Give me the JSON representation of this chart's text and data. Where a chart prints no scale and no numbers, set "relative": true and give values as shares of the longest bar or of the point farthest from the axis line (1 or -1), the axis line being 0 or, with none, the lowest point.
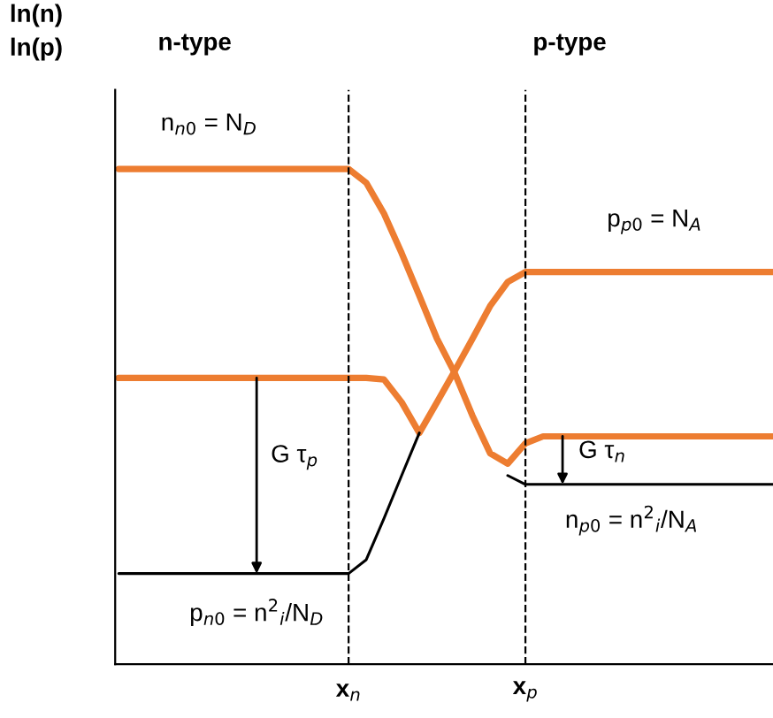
{
  "chart_data": {
    "type": "line",
    "relative": true,
    "ylabel": "ln(n)\nln(p)",
    "categories": [
      null,
      null,
      null,
      null,
      null,
      null,
      null,
      null,
      null,
      null,
      null,
      null,
      null,
      "x$_{n}$",
      null,
      null,
      null,
      null,
      null,
      null,
      null,
      null,
      null,
      "x$_{p}$",
      null,
      null,
      null,
      null,
      null,
      null,
      null,
      null,
      null,
      null,
      null,
      null,
      null,
      null
    ],
    "grid": false,
    "legend": false,
    "line_style": "solid",
    "marker": "none",
    "series": [
      {
        "color": "#ed7d31",
        "values": [
          1.0,
          1.0,
          1.0,
          1.0,
          1.0,
          1.0,
          1.0,
          1.0,
          1.0,
          1.0,
          1.0,
          1.0,
          1.0,
          1.0,
          0.972,
          0.91,
          0.83,
          0.744,
          0.657,
          0.588,
          0.502,
          0.426,
          0.405,
          0.446,
          0.46,
          0.46,
          0.46,
          0.46,
          0.46,
          0.46,
          0.46,
          0.46,
          0.46,
          0.46,
          0.46,
          0.46,
          0.46,
          0.46
        ]
      },
      {
        "color": "#ed7d31",
        "values": [
          0.578,
          0.578,
          0.578,
          0.578,
          0.578,
          0.578,
          0.578,
          0.578,
          0.578,
          0.578,
          0.578,
          0.578,
          0.578,
          0.578,
          0.578,
          0.575,
          0.529,
          0.467,
          0.529,
          0.592,
          0.657,
          0.723,
          0.772,
          0.792,
          0.792,
          0.792,
          0.792,
          0.792,
          0.792,
          0.792,
          0.792,
          0.792,
          0.792,
          0.792,
          0.792,
          0.792,
          0.792,
          0.792
        ]
      },
      {
        "color": "#000000",
        "values": [
          0.183,
          0.183,
          0.183,
          0.183,
          0.183,
          0.183,
          0.183,
          0.183,
          0.183,
          0.183,
          0.183,
          0.183,
          0.183,
          0.183,
          0.211,
          0.294,
          0.381,
          0.467,
          null,
          null,
          null,
          null,
          null,
          null,
          null,
          null,
          null,
          null,
          null,
          null,
          null,
          null,
          null,
          null,
          null,
          null,
          null,
          null
        ]
      },
      {
        "color": "#000000",
        "values": [
          null,
          null,
          null,
          null,
          null,
          null,
          null,
          null,
          null,
          null,
          null,
          null,
          null,
          null,
          null,
          null,
          null,
          null,
          null,
          null,
          null,
          null,
          0.381,
          0.363,
          0.363,
          0.363,
          0.363,
          0.363,
          0.363,
          0.363,
          0.363,
          0.363,
          0.363,
          0.363,
          0.363,
          0.363,
          0.363,
          0.363
        ]
      }
    ],
    "ref_lines": [
      {
        "axis": "x",
        "value": "x$_{n}$",
        "color": "#000000",
        "line_style": "dashed"
      },
      {
        "axis": "x",
        "value": "x$_{p}$",
        "color": "#000000",
        "line_style": "dashed"
      }
    ],
    "annotations": [
      "n-type",
      "p-type",
      "n$_{n0}$ = N$_{D}$",
      "p$_{p0}$ = N$_{A}$",
      "G τ$_{p}$",
      "G τ$_{n}$",
      "p$_{n0}$ = n$^{2}$$_{i}$/N$_{D}$",
      "n$_{p0}$ = n$^{2}$$_{i}$/N$_{A}$"
    ]
  }
}
